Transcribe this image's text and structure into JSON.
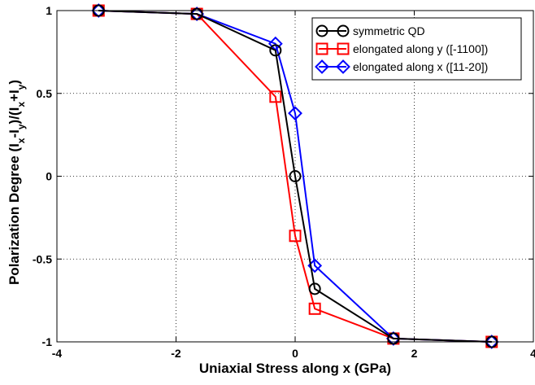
{
  "chart_data": {
    "type": "line",
    "title": "",
    "xlabel": "Uniaxial Stress along x (GPa)",
    "ylabel": {
      "parts": [
        {
          "t": "Polarization Degree (I",
          "sub": false
        },
        {
          "t": "x",
          "sub": true
        },
        {
          "t": "-I",
          "sub": false
        },
        {
          "t": "y",
          "sub": true
        },
        {
          "t": ")/(I",
          "sub": false
        },
        {
          "t": "x",
          "sub": true
        },
        {
          "t": "+I",
          "sub": false
        },
        {
          "t": "y",
          "sub": true
        },
        {
          "t": ")",
          "sub": false
        }
      ]
    },
    "xlim": [
      -4,
      4
    ],
    "ylim": [
      -1,
      1
    ],
    "xticks": [
      -4,
      -2,
      0,
      2,
      4
    ],
    "yticks": [
      -1,
      -0.5,
      0,
      0.5,
      1
    ],
    "xtick_labels": [
      "-4",
      "-2",
      "0",
      "2",
      "4"
    ],
    "ytick_labels": [
      "-1",
      "-0.5",
      "0",
      "0.5",
      "1"
    ],
    "grid": true,
    "grid_style": "dotted",
    "legend_position": "top-right",
    "series": [
      {
        "name": "symmetric QD",
        "color": "#000000",
        "marker": "circle",
        "x": [
          -3.3,
          -1.65,
          -0.33,
          0,
          0.33,
          1.65,
          3.3
        ],
        "y": [
          1.0,
          0.98,
          0.76,
          0.0,
          -0.68,
          -0.98,
          -1.0
        ]
      },
      {
        "name": "elongated along y ([-1100])",
        "color": "#ff0000",
        "marker": "square",
        "x": [
          -3.3,
          -1.65,
          -0.33,
          0,
          0.33,
          1.65,
          3.3
        ],
        "y": [
          1.0,
          0.98,
          0.48,
          -0.36,
          -0.8,
          -0.98,
          -1.0
        ]
      },
      {
        "name": "elongated along x ([11-20])",
        "color": "#0000ff",
        "marker": "diamond",
        "x": [
          -3.3,
          -1.65,
          -0.33,
          0,
          0.33,
          1.65,
          3.3
        ],
        "y": [
          1.0,
          0.98,
          0.8,
          0.38,
          -0.54,
          -0.98,
          -1.0
        ]
      }
    ]
  }
}
